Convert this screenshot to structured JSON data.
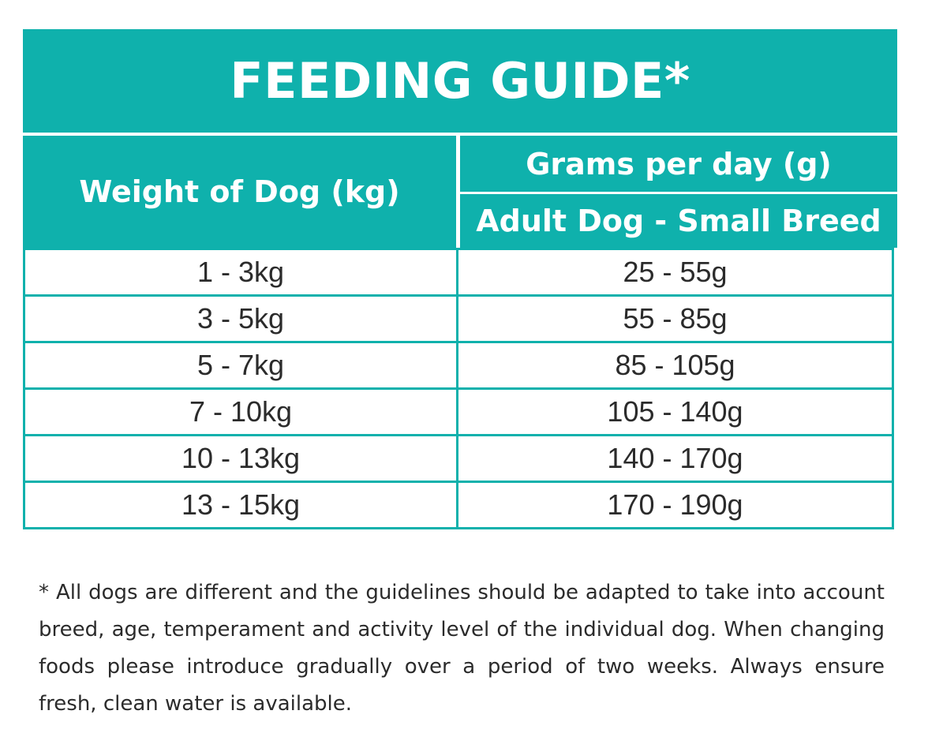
{
  "title": "FEEDING GUIDE*",
  "header": {
    "weight_label": "Weight of Dog (kg)",
    "grams_label": "Grams per day (g)",
    "sub_label": "Adult Dog - Small Breed"
  },
  "rows": [
    {
      "weight": "1 - 3kg",
      "grams": "25 - 55g"
    },
    {
      "weight": "3 - 5kg",
      "grams": "55 - 85g"
    },
    {
      "weight": "5 - 7kg",
      "grams": "85 - 105g"
    },
    {
      "weight": "7 - 10kg",
      "grams": "105 - 140g"
    },
    {
      "weight": "10 - 13kg",
      "grams": "140 - 170g"
    },
    {
      "weight": "13 - 15kg",
      "grams": "170 - 190g"
    }
  ],
  "footnote": "* All dogs are different and the guidelines should be adapted to take into account breed, age, temperament and activity level of the individual dog. When changing foods please introduce gradually over a period of two weeks. Always ensure fresh, clean water is available.",
  "colors": {
    "accent": "#0fb1ac",
    "text": "#2b2b2b"
  }
}
